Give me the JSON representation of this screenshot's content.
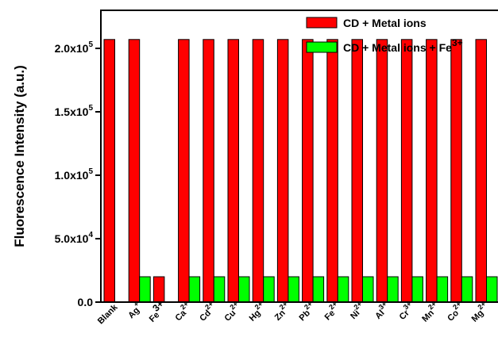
{
  "chart_data": {
    "type": "bar",
    "ylabel": "Fluorescence Intensity (a.u.)",
    "xlabel": "",
    "ylim": [
      0,
      230000
    ],
    "yticks": [
      {
        "value": 0,
        "mantissa": "0.0",
        "exp": ""
      },
      {
        "value": 50000,
        "mantissa": "5.0x10",
        "exp": "4"
      },
      {
        "value": 100000,
        "mantissa": "1.0x10",
        "exp": "5"
      },
      {
        "value": 150000,
        "mantissa": "1.5x10",
        "exp": "5"
      },
      {
        "value": 200000,
        "mantissa": "2.0x10",
        "exp": "5"
      }
    ],
    "categories": [
      {
        "base": "Blank",
        "sup": ""
      },
      {
        "base": "Ag",
        "sup": "+"
      },
      {
        "base": "Fe",
        "sup": "3+",
        "color": "#8b0000"
      },
      {
        "base": "Ca",
        "sup": "2+"
      },
      {
        "base": "Cd",
        "sup": "2+"
      },
      {
        "base": "Cu",
        "sup": "2+"
      },
      {
        "base": "Hg",
        "sup": "2+"
      },
      {
        "base": "Zn",
        "sup": "2+"
      },
      {
        "base": "Pb",
        "sup": "2+"
      },
      {
        "base": "Fe",
        "sup": "2+"
      },
      {
        "base": "Ni",
        "sup": "2+"
      },
      {
        "base": "Al",
        "sup": "3+"
      },
      {
        "base": "Cr",
        "sup": "3+"
      },
      {
        "base": "Mn",
        "sup": "2+"
      },
      {
        "base": "Co",
        "sup": "2+"
      },
      {
        "base": "Mg",
        "sup": "2+"
      }
    ],
    "series": [
      {
        "name": "CD + Metal ions",
        "color": "#ff0000",
        "values": [
          207000,
          207000,
          20000,
          207000,
          207000,
          207000,
          207000,
          207000,
          207000,
          207000,
          207000,
          207000,
          207000,
          207000,
          207000,
          207000
        ]
      },
      {
        "name": "CD + Metal ions + Fe",
        "name_sup": "3+",
        "color": "#00ff00",
        "values": [
          null,
          20000,
          null,
          20000,
          20000,
          20000,
          20000,
          20000,
          20000,
          20000,
          20000,
          20000,
          20000,
          20000,
          20000,
          20000
        ]
      }
    ],
    "legend_position": "top-right",
    "grid": false
  }
}
